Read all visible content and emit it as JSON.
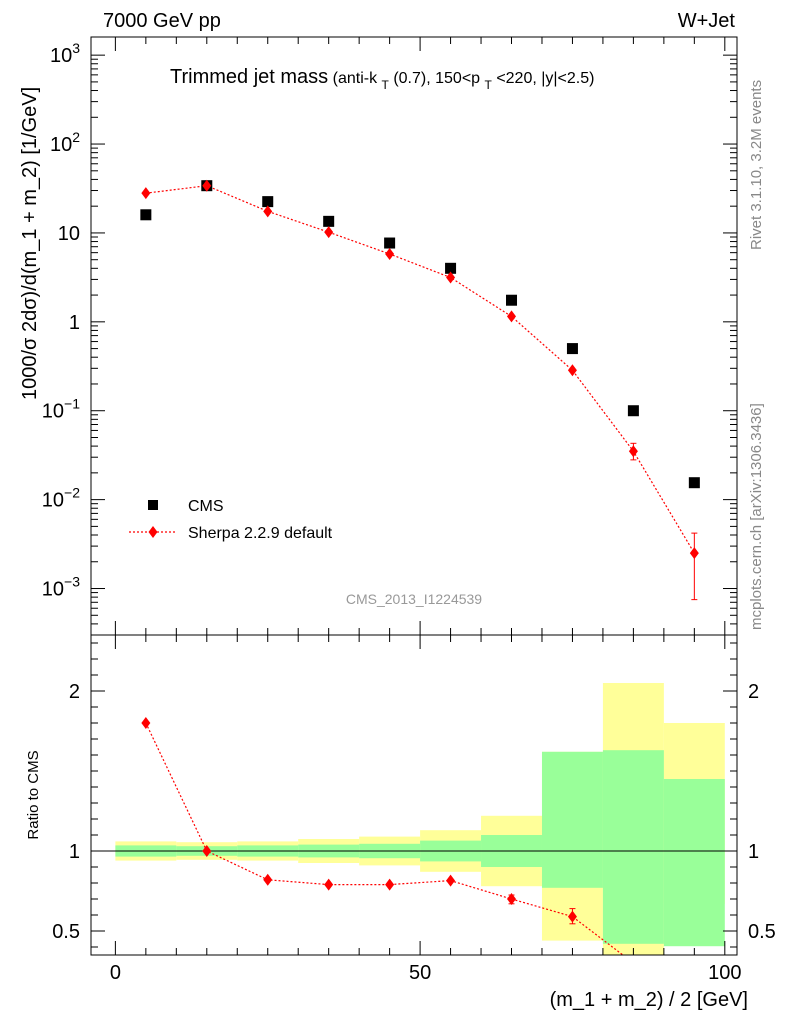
{
  "header": {
    "left": "7000 GeV pp",
    "right": "W+Jet"
  },
  "side_texts": {
    "rivet": "Rivet 3.1.10,  3.2M events",
    "mcplots": "mcplots.cern.ch [arXiv:1306.3436]"
  },
  "analysis_label": "CMS_2013_I1224539",
  "chart_data": [
    {
      "type": "scatter",
      "title": "Trimmed jet mass",
      "title_detail": {
        "open": "(anti-k",
        "sub_t1": "T",
        "mid": "(0.7), 150<p",
        "sub_t2": "T",
        "close": "<220, |y|<2.5)"
      },
      "ylabel": "1000/σ 2dσ)/d(m_1 + m_2) [1/GeV]",
      "yscale": "log",
      "ylim": [
        0.0003,
        1600
      ],
      "xlim": [
        -4,
        102
      ],
      "ytick_labels": [
        {
          "value": 1000,
          "base": "10",
          "exp": "3"
        },
        {
          "value": 100,
          "base": "10",
          "exp": "2"
        },
        {
          "value": 10,
          "base": "10",
          "exp": ""
        },
        {
          "value": 1,
          "base": "1",
          "exp": ""
        },
        {
          "value": 0.1,
          "base": "10",
          "exp": "−1"
        },
        {
          "value": 0.01,
          "base": "10",
          "exp": "−2"
        },
        {
          "value": 0.001,
          "base": "10",
          "exp": "−3"
        }
      ],
      "legend_placement": "lower-left",
      "series": [
        {
          "name": "CMS",
          "color": "#000000",
          "marker": "square",
          "x": [
            5,
            15,
            25,
            35,
            45,
            55,
            65,
            75,
            85,
            95
          ],
          "y": [
            16,
            34,
            22.5,
            13.5,
            7.7,
            4.0,
            1.75,
            0.5,
            0.1,
            0.0155
          ]
        },
        {
          "name": "Sherpa 2.2.9 default",
          "color": "#ff0000",
          "marker": "diamond",
          "line": "dotted",
          "x": [
            5,
            15,
            25,
            35,
            45,
            55,
            65,
            75,
            85,
            95
          ],
          "y": [
            28,
            34,
            17.5,
            10.2,
            5.8,
            3.15,
            1.15,
            0.285,
            0.035,
            0.0025
          ],
          "yerr_low": [
            null,
            null,
            null,
            null,
            null,
            null,
            null,
            null,
            0.028,
            0.00075
          ],
          "yerr_high": [
            null,
            null,
            null,
            null,
            null,
            null,
            null,
            null,
            0.043,
            0.0042
          ]
        }
      ]
    },
    {
      "type": "scatter",
      "ylabel": "Ratio to CMS",
      "xlabel": "(m_1 + m_2) / 2 [GeV]",
      "ylim": [
        0.35,
        2.35
      ],
      "xlim": [
        -4,
        102
      ],
      "yticks": [
        0.5,
        1,
        2
      ],
      "ytick_labels": [
        "0.5",
        "1",
        "2"
      ],
      "xticks": [
        0,
        50,
        100
      ],
      "xtick_labels": [
        "0",
        "50",
        "100"
      ],
      "bands": {
        "bin_edges": [
          0,
          10,
          20,
          30,
          40,
          50,
          60,
          70,
          80,
          90,
          100
        ],
        "stat_low": [
          0.965,
          0.97,
          0.965,
          0.96,
          0.955,
          0.935,
          0.9,
          0.77,
          0.42,
          0.405
        ],
        "stat_high": [
          1.035,
          1.03,
          1.035,
          1.04,
          1.045,
          1.065,
          1.1,
          1.62,
          1.63,
          1.45
        ],
        "total_low": [
          0.94,
          0.945,
          0.94,
          0.925,
          0.91,
          0.87,
          0.78,
          0.44,
          0.305,
          0.67
        ],
        "total_high": [
          1.06,
          1.055,
          1.06,
          1.075,
          1.09,
          1.13,
          1.22,
          1.62,
          2.05,
          1.8
        ],
        "stat_color": "#99ff99",
        "total_color": "#ffff99"
      },
      "series": [
        {
          "name": "Sherpa 2.2.9 default",
          "color": "#ff0000",
          "marker": "diamond",
          "line": "dotted",
          "x": [
            5,
            15,
            25,
            35,
            45,
            55,
            65,
            75,
            85
          ],
          "y": [
            1.8,
            1.0,
            0.82,
            0.79,
            0.79,
            0.815,
            0.7,
            0.59,
            0.3
          ],
          "yerr_low": [
            null,
            null,
            null,
            null,
            null,
            null,
            0.67,
            0.545,
            null
          ],
          "yerr_high": [
            null,
            null,
            null,
            null,
            null,
            null,
            0.725,
            0.64,
            null
          ]
        }
      ]
    }
  ]
}
